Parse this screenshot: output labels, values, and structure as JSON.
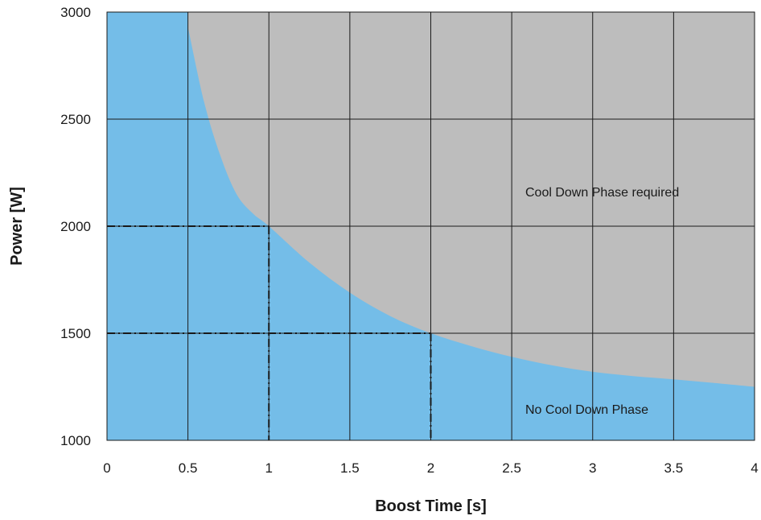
{
  "chart_data": {
    "type": "area",
    "xlabel": "Boost Time [s]",
    "ylabel": "Power [W]",
    "xlim": [
      0,
      4
    ],
    "ylim": [
      1000,
      3000
    ],
    "x_ticks": [
      "0",
      "0.5",
      "1",
      "1.5",
      "2",
      "2.5",
      "3",
      "3.5",
      "4"
    ],
    "y_ticks": [
      "1000",
      "1500",
      "2000",
      "2500",
      "3000"
    ],
    "grid": true,
    "boundary_curve": {
      "x": [
        0.5,
        0.6,
        0.7,
        0.8,
        0.9,
        1.0,
        1.25,
        1.5,
        1.75,
        2.0,
        2.25,
        2.5,
        2.75,
        3.0,
        3.25,
        3.5,
        3.75,
        4.0
      ],
      "y": [
        2930,
        2580,
        2330,
        2150,
        2060,
        2000,
        1830,
        1690,
        1580,
        1500,
        1440,
        1390,
        1350,
        1320,
        1300,
        1285,
        1268,
        1250
      ]
    },
    "regions": [
      {
        "label": "No Cool Down Phase",
        "color": "#74bde8",
        "position": "below curve"
      },
      {
        "label": "Cool Down Phase required",
        "color": "#bdbdbd",
        "position": "above curve"
      }
    ],
    "reference_lines": [
      {
        "x": 1,
        "y": 2000
      },
      {
        "x": 2,
        "y": 1500
      }
    ]
  }
}
